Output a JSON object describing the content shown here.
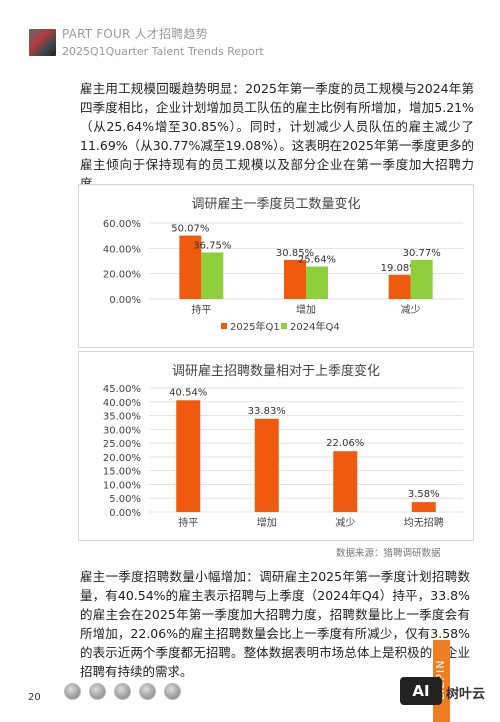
{
  "header": {
    "line1": "PART FOUR 人才招聘趋势",
    "line2": "2025Q1Quarter Talent Trends Report"
  },
  "paragraph1": "雇主用工规模回暖趋势明显：2025年第一季度的员工规模与2024年第四季度相比，企业计划增加员工队伍的雇主比例有所增加，增加5.21%（从25.64%增至30.85%）。同时，计划减少人员队伍的雇主减少了11.69%（从30.77%减至19.08%）。这表明在2025年第一季度更多的雇主倾向于保持现有的员工规模以及部分企业在第一季度加大招聘力度。",
  "paragraph2": "雇主一季度招聘数量小幅增加：调研雇主2025年第一季度计划招聘数量，有40.54%的雇主表示招聘与上季度（2024年Q4）持平，33.8%的雇主会在2025年第一季度加大招聘力度，招聘数量比上一季度会有所增加，22.06%的雇主招聘数量会比上一季度有所减少，仅有3.58%的表示近两个季度都无招聘。整体数据表明市场总体上是积极的，企业招聘有持续的需求。",
  "source": "数据来源：猎聘调研数据",
  "page_number": "20",
  "side_label": "LIEPIN",
  "watermark": {
    "badge": "AI",
    "text": "树叶云"
  },
  "chart_data": [
    {
      "type": "bar",
      "title": "调研雇主一季度员工数量变化",
      "categories": [
        "持平",
        "增加",
        "减少"
      ],
      "series": [
        {
          "name": "2025年Q1",
          "values": [
            50.07,
            30.85,
            19.08
          ],
          "color": "#ef5a0f"
        },
        {
          "name": "2024年Q4",
          "values": [
            36.75,
            25.64,
            30.77
          ],
          "color": "#8fcf3c"
        }
      ],
      "yticks": [
        "0.00%",
        "20.00%",
        "40.00%",
        "60.00%"
      ],
      "ylim": [
        0,
        60
      ],
      "grid": true,
      "legend": "bottom"
    },
    {
      "type": "bar",
      "title": "调研雇主招聘数量相对于上季度变化",
      "categories": [
        "持平",
        "增加",
        "减少",
        "均无招聘"
      ],
      "values": [
        40.54,
        33.83,
        22.06,
        3.58
      ],
      "color": "#ef5a0f",
      "yticks": [
        "0.00%",
        "5.00%",
        "10.00%",
        "15.00%",
        "20.00%",
        "25.00%",
        "30.00%",
        "35.00%",
        "40.00%",
        "45.00%"
      ],
      "ylim": [
        0,
        45
      ],
      "grid": true
    }
  ]
}
